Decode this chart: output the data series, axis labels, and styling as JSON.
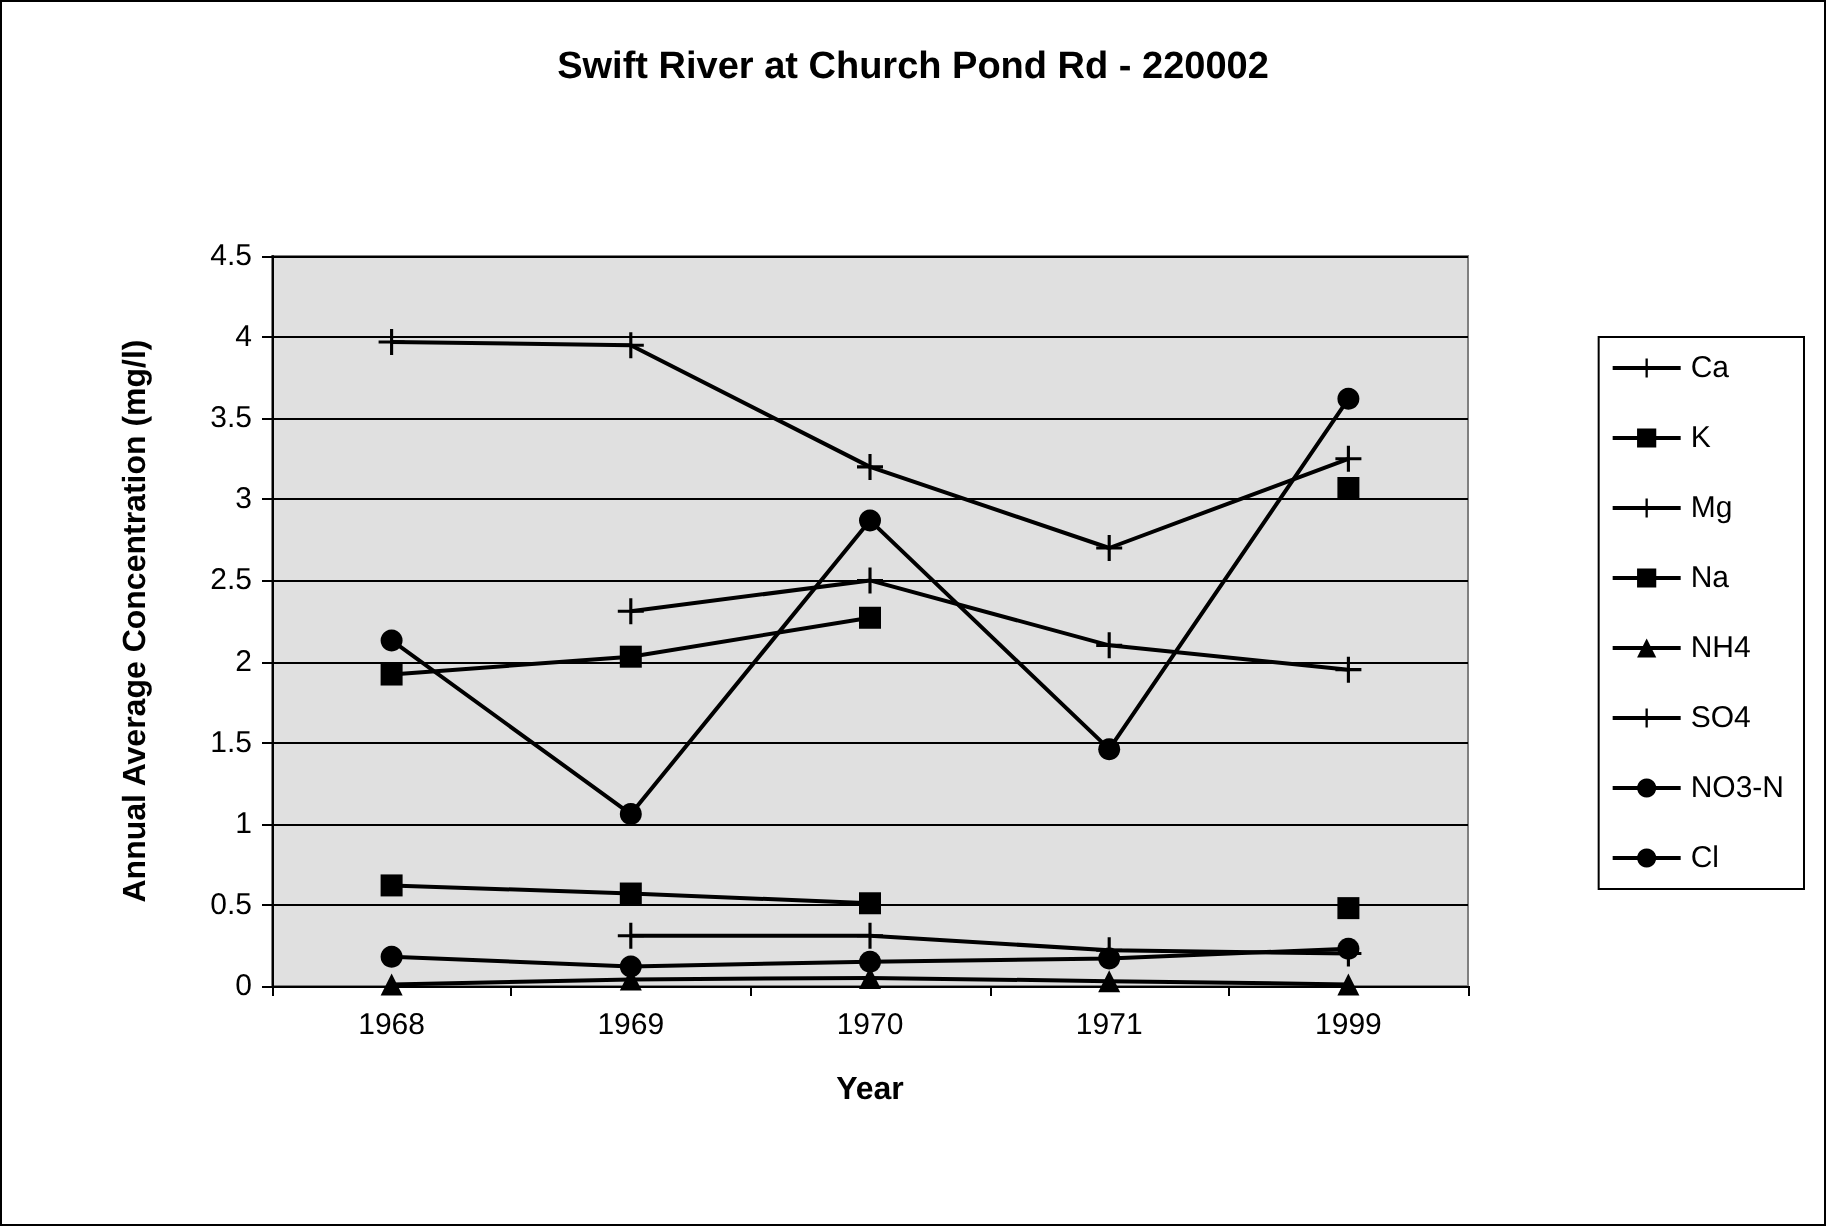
{
  "chart_data": {
    "type": "line",
    "title": "Swift River at Church Pond Rd - 220002",
    "xlabel": "Year",
    "ylabel": "Annual Average Concentration (mg/l)",
    "categories": [
      "1968",
      "1969",
      "1970",
      "1971",
      "1999"
    ],
    "ylim": [
      0,
      4.5
    ],
    "yticks": [
      0,
      0.5,
      1,
      1.5,
      2,
      2.5,
      3,
      3.5,
      4,
      4.5
    ],
    "grid": "y",
    "legend": "right",
    "series": [
      {
        "name": "Ca",
        "color": "#000000",
        "marker": "cross",
        "values": [
          3.97,
          3.95,
          3.2,
          2.7,
          3.25
        ]
      },
      {
        "name": "K",
        "color": "#000000",
        "marker": "square",
        "values": [
          0.62,
          0.57,
          0.51,
          null,
          0.48
        ]
      },
      {
        "name": "Mg",
        "color": "#000000",
        "marker": "cross",
        "values": [
          null,
          0.31,
          0.31,
          0.22,
          0.2
        ]
      },
      {
        "name": "Na",
        "color": "#000000",
        "marker": "square",
        "values": [
          1.92,
          2.03,
          2.27,
          null,
          3.07
        ]
      },
      {
        "name": "NH4",
        "color": "#000000",
        "marker": "triangle",
        "values": [
          0.01,
          0.04,
          0.05,
          0.03,
          0.01
        ]
      },
      {
        "name": "SO4",
        "color": "#000000",
        "marker": "cross",
        "values": [
          null,
          2.31,
          2.5,
          2.1,
          1.95
        ]
      },
      {
        "name": "NO3-N",
        "color": "#000000",
        "marker": "circle",
        "values": [
          0.18,
          0.12,
          0.15,
          0.17,
          0.23
        ]
      },
      {
        "name": "Cl",
        "color": "#000000",
        "marker": "circle",
        "values": [
          2.13,
          1.06,
          2.87,
          1.46,
          3.62
        ]
      }
    ]
  }
}
